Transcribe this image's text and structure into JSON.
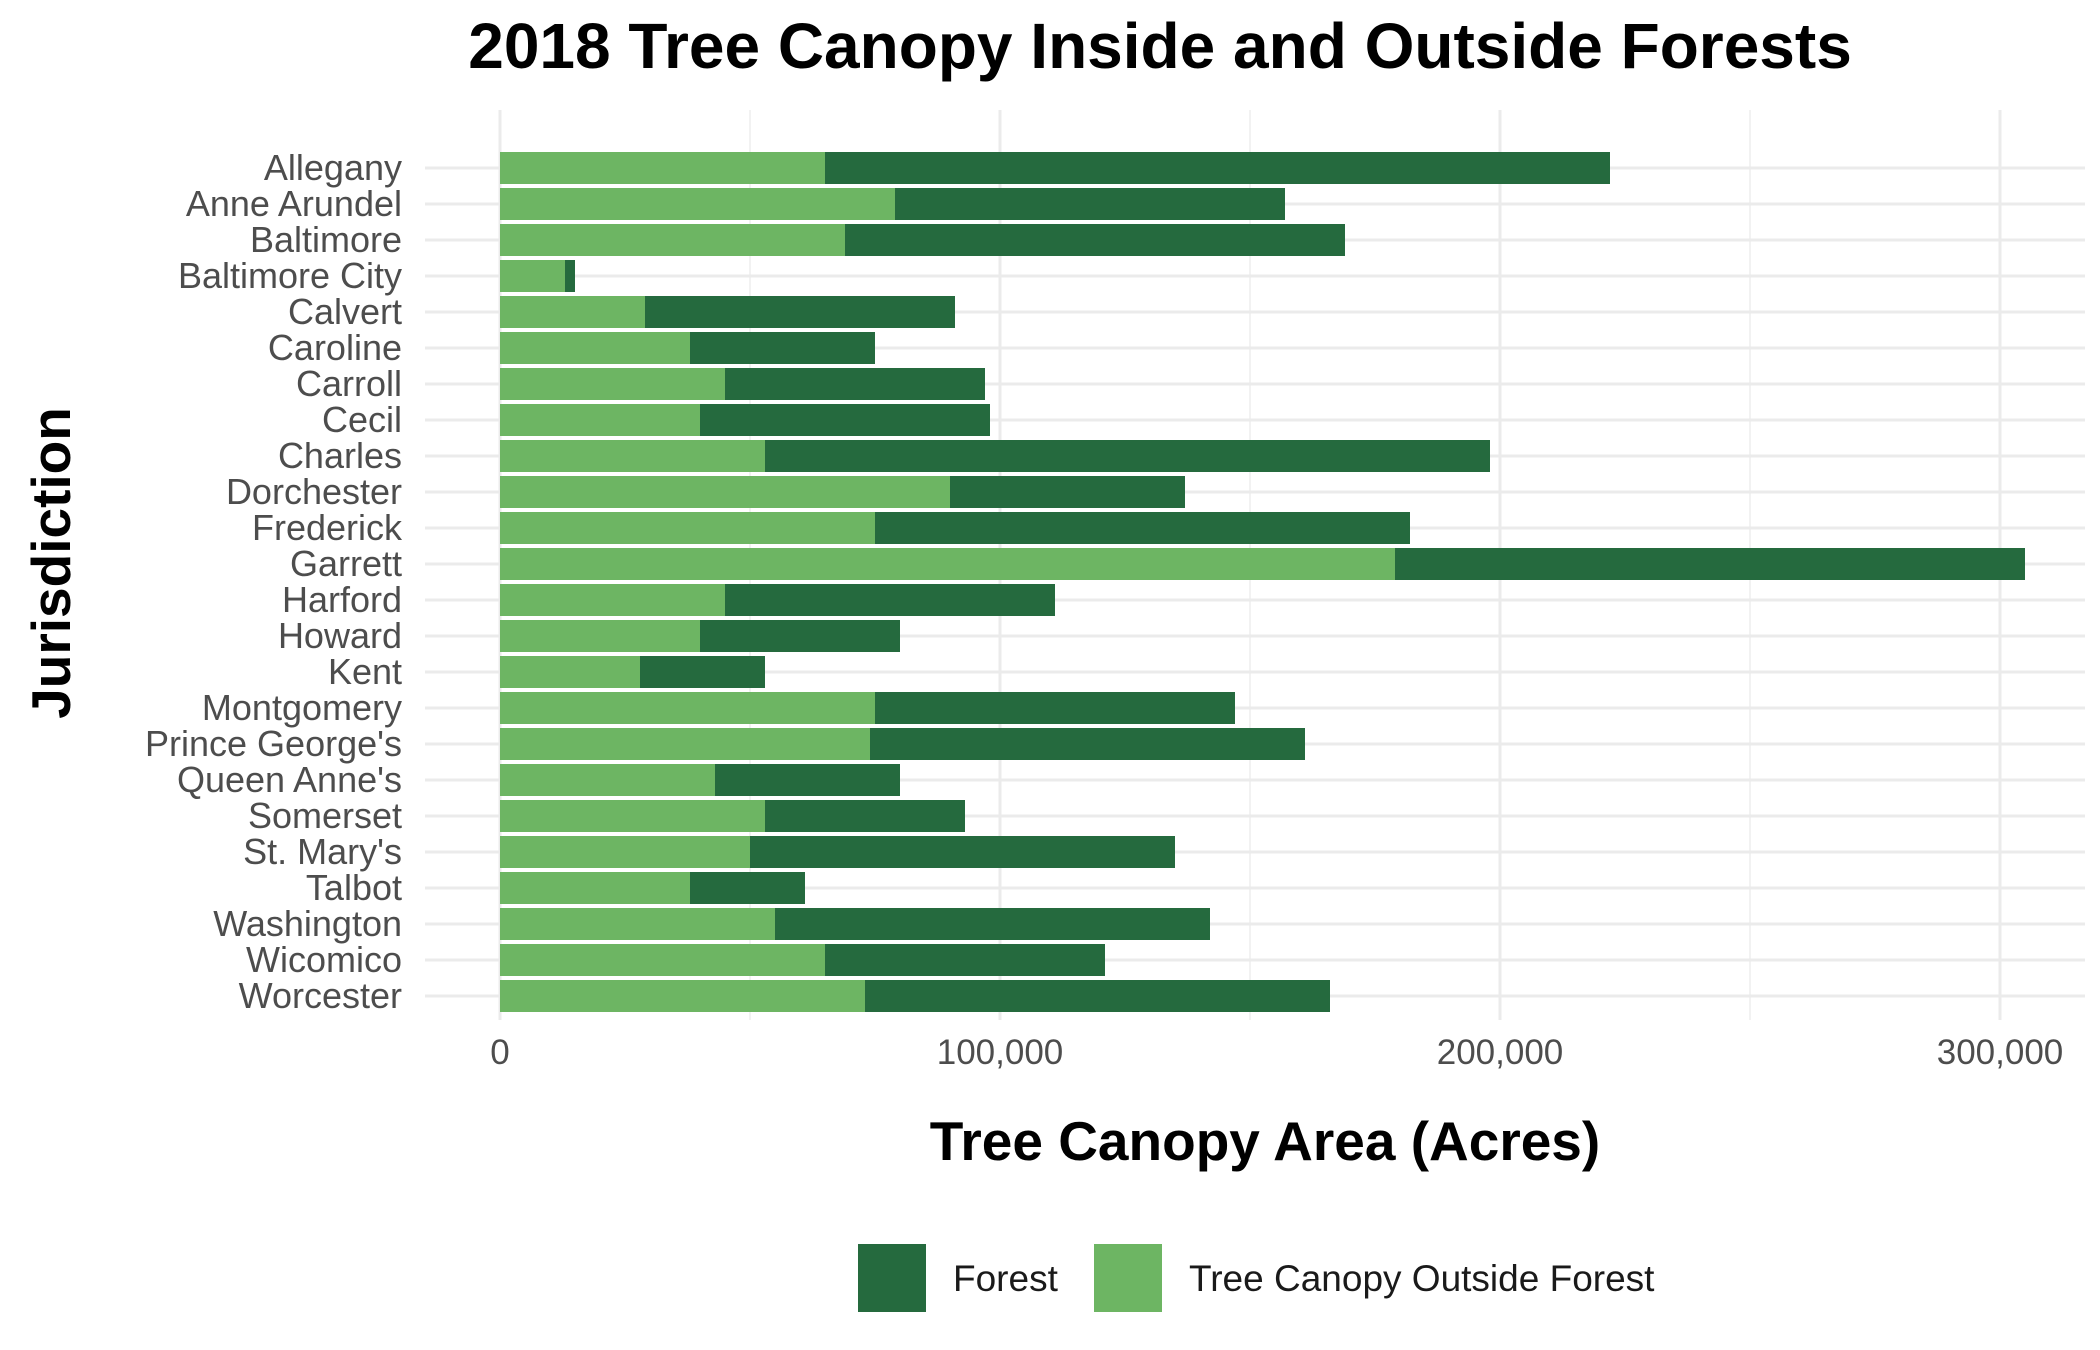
{
  "chart_data": {
    "type": "bar",
    "orientation": "horizontal",
    "stacked": true,
    "title": "2018 Tree Canopy Inside and Outside Forests",
    "xlabel": "Tree Canopy Area (Acres)",
    "ylabel": "Jurisdiction",
    "xlim": [
      0,
      320000
    ],
    "x_ticks": [
      0,
      100000,
      200000,
      300000
    ],
    "x_tick_labels": [
      "0",
      "100,000",
      "200,000",
      "300,000"
    ],
    "grid": true,
    "legend_position": "bottom",
    "categories": [
      "Allegany",
      "Anne Arundel",
      "Baltimore",
      "Baltimore City",
      "Calvert",
      "Caroline",
      "Carroll",
      "Cecil",
      "Charles",
      "Dorchester",
      "Frederick",
      "Garrett",
      "Harford",
      "Howard",
      "Kent",
      "Montgomery",
      "Prince George's",
      "Queen Anne's",
      "Somerset",
      "St. Mary's",
      "Talbot",
      "Washington",
      "Wicomico",
      "Worcester"
    ],
    "series": [
      {
        "name": "Tree Canopy Outside Forest",
        "color": "#6db563",
        "values": [
          65000,
          79000,
          69000,
          13000,
          29000,
          38000,
          45000,
          40000,
          53000,
          90000,
          75000,
          179000,
          45000,
          40000,
          28000,
          75000,
          74000,
          43000,
          53000,
          50000,
          38000,
          55000,
          65000,
          73000
        ]
      },
      {
        "name": "Forest",
        "color": "#256a3e",
        "values": [
          157000,
          78000,
          100000,
          2000,
          62000,
          37000,
          52000,
          58000,
          145000,
          47000,
          107000,
          126000,
          66000,
          40000,
          25000,
          72000,
          87000,
          37000,
          40000,
          85000,
          23000,
          87000,
          56000,
          93000
        ]
      }
    ]
  }
}
